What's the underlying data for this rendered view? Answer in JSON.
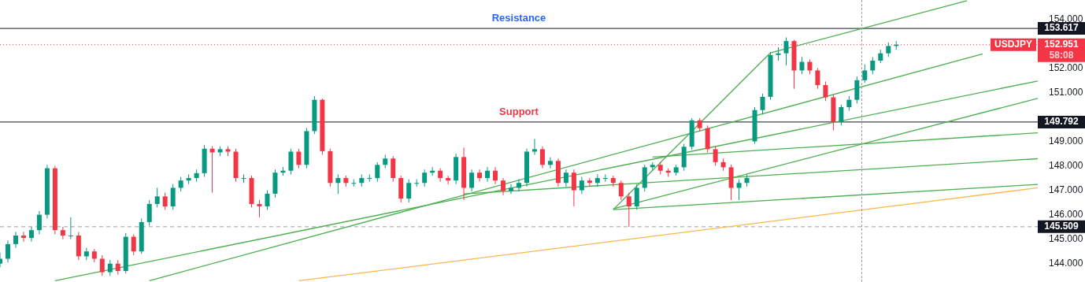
{
  "chart_data": {
    "type": "candlestick",
    "categories": [
      null,
      null,
      null,
      null,
      null,
      null,
      null,
      null,
      null,
      null,
      null,
      null,
      null,
      null,
      null,
      null,
      null,
      null,
      null,
      null,
      null,
      null,
      null,
      null,
      null,
      null,
      null,
      null,
      null,
      null,
      null,
      null,
      null,
      null,
      null,
      null,
      null,
      null,
      null,
      null,
      null,
      null,
      null,
      null,
      null,
      null,
      null,
      null,
      null,
      null,
      null,
      null,
      null,
      null,
      null,
      null,
      null,
      null,
      null,
      null,
      null,
      null,
      null,
      null,
      null,
      null,
      null,
      null,
      null,
      null,
      null,
      null,
      null,
      null,
      null,
      null,
      null,
      null,
      null,
      null,
      null,
      null,
      null,
      null,
      null,
      null,
      null,
      null,
      null,
      null,
      null,
      null,
      null,
      null,
      null,
      null,
      null,
      null,
      null,
      null,
      null,
      null,
      null,
      null,
      null,
      null,
      null,
      null,
      null,
      null,
      null,
      null,
      null,
      null,
      null,
      null,
      null,
      null,
      null,
      null,
      null,
      null,
      null,
      null,
      null,
      null,
      null,
      null,
      null,
      null,
      null,
      null,
      null
    ],
    "ohlc": [
      [
        144.0,
        144.45,
        143.85,
        144.2
      ],
      [
        144.2,
        144.95,
        144.05,
        144.8
      ],
      [
        144.8,
        145.3,
        144.65,
        145.15
      ],
      [
        145.15,
        145.3,
        144.9,
        145.05
      ],
      [
        145.05,
        145.5,
        144.9,
        145.37
      ],
      [
        145.37,
        146.15,
        145.2,
        146.0
      ],
      [
        146.0,
        148.04,
        145.85,
        147.9
      ],
      [
        147.9,
        148.0,
        145.2,
        145.37
      ],
      [
        145.37,
        145.5,
        145.0,
        145.15
      ],
      [
        145.15,
        145.9,
        145.0,
        145.15
      ],
      [
        145.15,
        145.3,
        144.15,
        144.3
      ],
      [
        144.3,
        144.65,
        144.15,
        144.5
      ],
      [
        144.5,
        144.6,
        144.05,
        144.2
      ],
      [
        144.2,
        144.35,
        143.5,
        143.65
      ],
      [
        143.65,
        144.15,
        143.5,
        144.0
      ],
      [
        144.0,
        144.15,
        143.55,
        143.7
      ],
      [
        143.7,
        145.25,
        143.6,
        145.1
      ],
      [
        145.1,
        145.2,
        144.35,
        144.5
      ],
      [
        144.5,
        145.85,
        144.4,
        145.7
      ],
      [
        145.7,
        146.6,
        145.55,
        146.44
      ],
      [
        146.44,
        147.1,
        146.3,
        146.75
      ],
      [
        146.75,
        146.9,
        146.2,
        146.34
      ],
      [
        146.34,
        147.25,
        146.2,
        147.1
      ],
      [
        147.1,
        147.55,
        146.95,
        147.4
      ],
      [
        147.4,
        147.65,
        147.25,
        147.5
      ],
      [
        147.5,
        147.85,
        147.35,
        147.7
      ],
      [
        147.7,
        148.85,
        147.55,
        148.7
      ],
      [
        148.7,
        148.8,
        146.9,
        148.55
      ],
      [
        148.55,
        148.8,
        148.4,
        148.68
      ],
      [
        148.68,
        148.8,
        148.4,
        148.58
      ],
      [
        148.58,
        148.7,
        147.35,
        147.5
      ],
      [
        147.5,
        147.65,
        147.3,
        147.5
      ],
      [
        147.5,
        147.6,
        146.3,
        146.44
      ],
      [
        146.44,
        146.6,
        145.9,
        146.34
      ],
      [
        146.34,
        147.0,
        146.2,
        146.86
      ],
      [
        146.86,
        147.85,
        146.7,
        147.72
      ],
      [
        147.72,
        147.95,
        147.6,
        147.8
      ],
      [
        147.8,
        148.7,
        147.65,
        148.58
      ],
      [
        148.58,
        148.7,
        147.9,
        148.04
      ],
      [
        148.04,
        149.55,
        147.9,
        149.42
      ],
      [
        149.42,
        150.85,
        149.3,
        150.7
      ],
      [
        150.7,
        150.75,
        148.45,
        148.6
      ],
      [
        148.6,
        148.7,
        147.15,
        147.3
      ],
      [
        147.3,
        147.65,
        146.85,
        147.5
      ],
      [
        147.5,
        147.6,
        147.15,
        147.3
      ],
      [
        147.3,
        147.45,
        147.15,
        147.3
      ],
      [
        147.3,
        147.65,
        147.15,
        147.5
      ],
      [
        147.5,
        147.65,
        147.35,
        147.5
      ],
      [
        147.5,
        148.15,
        147.35,
        148.04
      ],
      [
        148.04,
        148.45,
        147.9,
        148.3
      ],
      [
        148.3,
        148.4,
        147.35,
        147.5
      ],
      [
        147.5,
        147.6,
        146.5,
        146.66
      ],
      [
        146.66,
        147.45,
        146.5,
        147.3
      ],
      [
        147.3,
        147.45,
        147.15,
        147.3
      ],
      [
        147.3,
        147.85,
        147.15,
        147.72
      ],
      [
        147.72,
        147.95,
        147.6,
        147.8
      ],
      [
        147.8,
        147.9,
        147.35,
        147.5
      ],
      [
        147.5,
        147.6,
        147.25,
        147.4
      ],
      [
        147.4,
        148.5,
        147.25,
        148.36
      ],
      [
        148.36,
        148.75,
        146.6,
        147.1
      ],
      [
        147.1,
        147.85,
        146.95,
        147.72
      ],
      [
        147.72,
        147.85,
        147.35,
        147.5
      ],
      [
        147.5,
        147.95,
        147.35,
        147.8
      ],
      [
        147.8,
        147.95,
        147.25,
        147.4
      ],
      [
        147.4,
        147.5,
        146.8,
        146.97
      ],
      [
        146.97,
        147.25,
        146.85,
        147.1
      ],
      [
        147.1,
        147.45,
        146.95,
        147.3
      ],
      [
        147.3,
        148.7,
        147.15,
        148.58
      ],
      [
        148.58,
        149.1,
        148.45,
        148.68
      ],
      [
        148.68,
        148.8,
        147.9,
        148.04
      ],
      [
        148.04,
        148.35,
        147.9,
        148.2
      ],
      [
        148.2,
        148.3,
        147.15,
        147.3
      ],
      [
        147.3,
        147.85,
        147.15,
        147.72
      ],
      [
        147.72,
        147.85,
        146.35,
        147.0
      ],
      [
        147.0,
        147.55,
        146.85,
        147.4
      ],
      [
        147.4,
        147.5,
        147.15,
        147.3
      ],
      [
        147.3,
        147.65,
        147.15,
        147.5
      ],
      [
        147.5,
        147.65,
        147.35,
        147.5
      ],
      [
        147.5,
        147.6,
        147.15,
        147.3
      ],
      [
        147.3,
        147.4,
        146.6,
        146.75
      ],
      [
        146.75,
        146.9,
        145.5,
        146.34
      ],
      [
        146.34,
        147.25,
        146.2,
        147.1
      ],
      [
        147.1,
        148.05,
        146.95,
        147.94
      ],
      [
        147.94,
        148.15,
        147.8,
        148.04
      ],
      [
        148.04,
        148.15,
        147.65,
        147.8
      ],
      [
        147.8,
        147.9,
        147.55,
        147.72
      ],
      [
        147.72,
        148.05,
        147.6,
        147.94
      ],
      [
        147.94,
        148.9,
        147.8,
        148.78
      ],
      [
        148.78,
        149.95,
        148.65,
        149.86
      ],
      [
        149.86,
        149.95,
        149.4,
        149.54
      ],
      [
        149.54,
        149.65,
        148.55,
        148.68
      ],
      [
        148.68,
        148.8,
        148.0,
        148.15
      ],
      [
        148.15,
        148.3,
        147.8,
        147.94
      ],
      [
        147.94,
        148.05,
        146.6,
        147.1
      ],
      [
        147.1,
        147.45,
        146.6,
        147.3
      ],
      [
        147.3,
        147.65,
        147.15,
        147.5
      ],
      [
        149.0,
        150.4,
        148.9,
        150.28
      ],
      [
        150.28,
        150.95,
        150.1,
        150.82
      ],
      [
        150.82,
        152.65,
        150.7,
        152.53
      ],
      [
        152.53,
        152.85,
        152.3,
        152.6
      ],
      [
        152.6,
        153.25,
        152.1,
        153.1
      ],
      [
        153.1,
        153.15,
        151.15,
        151.9
      ],
      [
        151.9,
        152.45,
        151.75,
        152.25
      ],
      [
        152.25,
        152.35,
        151.75,
        151.9
      ],
      [
        151.9,
        152.0,
        151.15,
        151.3
      ],
      [
        151.3,
        151.45,
        150.65,
        150.8
      ],
      [
        150.8,
        150.9,
        149.45,
        149.8
      ],
      [
        149.8,
        150.5,
        149.65,
        150.4
      ],
      [
        150.4,
        150.85,
        150.25,
        150.7
      ],
      [
        150.7,
        151.65,
        150.55,
        151.5
      ],
      [
        151.5,
        152.15,
        151.4,
        151.9
      ],
      [
        151.9,
        152.45,
        151.75,
        152.3
      ],
      [
        152.3,
        152.75,
        152.2,
        152.6
      ],
      [
        152.6,
        153.05,
        152.45,
        152.9
      ],
      [
        152.9,
        153.1,
        152.75,
        152.951
      ],
      null,
      null,
      null,
      null,
      null,
      null,
      null,
      null,
      null,
      null,
      null,
      null,
      null,
      null,
      null,
      null,
      null,
      null
    ],
    "series": [
      {
        "type": "line",
        "color": "#4caf50",
        "values": [
          null,
          null,
          null,
          null,
          null,
          null,
          null,
          null,
          null,
          null,
          null,
          null,
          null,
          null,
          null,
          null,
          null,
          null,
          null,
          null,
          null,
          null,
          null,
          null,
          null,
          null,
          null,
          null,
          null,
          null,
          null,
          null,
          null,
          null,
          null,
          null,
          null,
          null,
          null,
          null,
          null,
          null,
          null,
          null,
          null,
          null,
          null,
          null,
          null,
          null,
          null,
          null,
          null,
          null,
          null,
          null,
          null,
          null,
          null,
          null,
          null,
          null,
          null,
          null,
          null,
          null,
          null,
          null,
          null,
          null,
          null,
          null,
          null,
          null,
          null,
          null,
          null,
          null,
          null,
          null,
          null,
          null,
          null,
          null,
          null,
          null,
          null,
          null,
          null,
          null,
          null,
          null,
          null,
          null,
          null,
          null,
          null,
          null,
          152.62,
          null,
          null,
          null,
          null,
          null,
          null,
          null,
          null,
          null,
          null,
          null,
          null,
          null,
          null,
          null,
          null,
          null,
          null,
          null,
          null,
          null,
          null,
          null,
          null,
          154.75,
          null,
          null,
          null,
          null,
          null,
          null,
          null,
          null,
          null
        ]
      },
      {
        "type": "line",
        "color": "#4caf50",
        "values": [
          null,
          null,
          null,
          null,
          null,
          null,
          null,
          null,
          null,
          null,
          null,
          null,
          null,
          null,
          null,
          null,
          null,
          null,
          null,
          143.3,
          null,
          null,
          null,
          null,
          null,
          null,
          null,
          null,
          null,
          null,
          null,
          null,
          null,
          null,
          null,
          null,
          null,
          null,
          null,
          null,
          null,
          null,
          null,
          null,
          null,
          null,
          null,
          null,
          null,
          null,
          null,
          null,
          null,
          null,
          null,
          null,
          null,
          null,
          null,
          null,
          null,
          null,
          null,
          null,
          null,
          null,
          null,
          null,
          null,
          null,
          null,
          null,
          null,
          null,
          null,
          null,
          null,
          null,
          null,
          null,
          null,
          null,
          null,
          null,
          null,
          null,
          null,
          null,
          null,
          null,
          null,
          null,
          null,
          null,
          null,
          null,
          null,
          null,
          null,
          null,
          null,
          null,
          null,
          null,
          null,
          null,
          null,
          null,
          null,
          null,
          null,
          null,
          null,
          null,
          null,
          null,
          null,
          null,
          null,
          null,
          null,
          null,
          null,
          null,
          null,
          152.58,
          null,
          null,
          null,
          null,
          null,
          null,
          null
        ]
      },
      {
        "type": "line",
        "color": "#4caf50",
        "values": [
          null,
          null,
          null,
          null,
          null,
          null,
          null,
          143.3,
          null,
          null,
          null,
          null,
          null,
          null,
          null,
          null,
          null,
          null,
          null,
          null,
          null,
          null,
          null,
          null,
          null,
          null,
          null,
          null,
          null,
          null,
          null,
          null,
          null,
          null,
          null,
          null,
          null,
          null,
          null,
          null,
          null,
          null,
          null,
          null,
          null,
          null,
          null,
          null,
          null,
          null,
          null,
          null,
          null,
          null,
          null,
          null,
          null,
          null,
          null,
          null,
          null,
          null,
          null,
          null,
          null,
          null,
          null,
          null,
          null,
          null,
          null,
          null,
          null,
          null,
          null,
          null,
          null,
          null,
          null,
          null,
          null,
          null,
          null,
          null,
          null,
          null,
          null,
          null,
          null,
          null,
          null,
          null,
          null,
          null,
          null,
          null,
          null,
          null,
          null,
          null,
          null,
          null,
          null,
          null,
          null,
          null,
          null,
          null,
          null,
          null,
          null,
          null,
          null,
          null,
          null,
          null,
          null,
          null,
          null,
          null,
          null,
          null,
          null,
          null,
          null,
          null,
          null,
          null,
          null,
          null,
          null,
          null,
          151.47
        ]
      },
      {
        "type": "line",
        "color": "#4caf50",
        "values": [
          null,
          null,
          null,
          null,
          null,
          null,
          null,
          null,
          null,
          null,
          null,
          null,
          null,
          null,
          null,
          null,
          null,
          null,
          null,
          null,
          null,
          null,
          null,
          null,
          null,
          null,
          null,
          null,
          null,
          null,
          null,
          null,
          null,
          null,
          null,
          null,
          null,
          null,
          null,
          null,
          null,
          null,
          null,
          null,
          null,
          null,
          null,
          null,
          null,
          null,
          null,
          null,
          null,
          null,
          null,
          null,
          null,
          null,
          null,
          null,
          null,
          null,
          null,
          null,
          null,
          null,
          null,
          null,
          null,
          null,
          null,
          null,
          null,
          null,
          null,
          null,
          null,
          null,
          146.24,
          null,
          null,
          null,
          null,
          null,
          null,
          null,
          null,
          null,
          null,
          null,
          null,
          null,
          null,
          null,
          null,
          null,
          null,
          null,
          null,
          null,
          null,
          null,
          null,
          null,
          null,
          null,
          null,
          null,
          null,
          null,
          null,
          null,
          null,
          null,
          null,
          null,
          null,
          null,
          null,
          null,
          null,
          null,
          null,
          null,
          null,
          null,
          null,
          null,
          null,
          null,
          null,
          null,
          150.76
        ]
      },
      {
        "type": "line",
        "color": "#4caf50",
        "values": [
          null,
          null,
          null,
          null,
          null,
          null,
          null,
          null,
          null,
          null,
          null,
          null,
          null,
          null,
          null,
          null,
          null,
          null,
          null,
          null,
          null,
          null,
          null,
          null,
          null,
          null,
          null,
          null,
          null,
          null,
          null,
          null,
          null,
          null,
          null,
          null,
          null,
          null,
          null,
          null,
          null,
          null,
          null,
          null,
          null,
          null,
          null,
          null,
          null,
          null,
          null,
          null,
          null,
          null,
          null,
          null,
          null,
          null,
          null,
          null,
          null,
          null,
          null,
          null,
          null,
          null,
          null,
          null,
          null,
          null,
          null,
          null,
          null,
          null,
          null,
          null,
          null,
          null,
          null,
          null,
          null,
          null,
          null,
          148.36,
          null,
          null,
          null,
          null,
          null,
          null,
          null,
          null,
          null,
          null,
          null,
          null,
          null,
          null,
          null,
          null,
          null,
          null,
          null,
          null,
          null,
          null,
          null,
          null,
          null,
          null,
          null,
          null,
          null,
          null,
          null,
          null,
          null,
          null,
          null,
          null,
          null,
          null,
          null,
          null,
          null,
          null,
          null,
          null,
          null,
          null,
          null,
          null,
          149.35
        ]
      },
      {
        "type": "line",
        "color": "#4caf50",
        "values": [
          null,
          null,
          null,
          null,
          null,
          null,
          null,
          null,
          null,
          null,
          null,
          null,
          null,
          null,
          null,
          null,
          null,
          null,
          null,
          null,
          null,
          null,
          null,
          null,
          null,
          null,
          null,
          null,
          null,
          null,
          null,
          null,
          null,
          null,
          null,
          null,
          null,
          null,
          null,
          null,
          null,
          null,
          null,
          null,
          null,
          null,
          null,
          null,
          null,
          null,
          null,
          null,
          null,
          null,
          null,
          null,
          null,
          null,
          null,
          146.85,
          null,
          null,
          null,
          null,
          null,
          null,
          null,
          null,
          null,
          null,
          null,
          null,
          null,
          null,
          null,
          null,
          null,
          null,
          null,
          null,
          null,
          null,
          null,
          null,
          null,
          null,
          null,
          null,
          null,
          null,
          null,
          null,
          null,
          null,
          null,
          null,
          null,
          null,
          null,
          null,
          null,
          null,
          null,
          null,
          null,
          null,
          null,
          null,
          null,
          null,
          null,
          null,
          null,
          null,
          null,
          null,
          null,
          null,
          null,
          null,
          null,
          null,
          null,
          null,
          null,
          null,
          null,
          null,
          null,
          null,
          null,
          null,
          148.29
        ]
      },
      {
        "type": "line",
        "color": "#4caf50",
        "values": [
          null,
          null,
          null,
          null,
          null,
          null,
          null,
          null,
          null,
          null,
          null,
          null,
          null,
          null,
          null,
          null,
          null,
          null,
          null,
          null,
          null,
          null,
          null,
          null,
          null,
          null,
          null,
          null,
          null,
          null,
          null,
          null,
          null,
          null,
          null,
          null,
          null,
          null,
          null,
          null,
          null,
          null,
          null,
          null,
          null,
          null,
          null,
          null,
          null,
          null,
          null,
          null,
          null,
          null,
          null,
          null,
          null,
          null,
          null,
          null,
          null,
          null,
          null,
          null,
          null,
          null,
          null,
          null,
          null,
          null,
          null,
          null,
          null,
          null,
          null,
          null,
          null,
          null,
          146.21,
          null,
          null,
          null,
          null,
          null,
          null,
          null,
          null,
          null,
          null,
          null,
          null,
          null,
          null,
          null,
          null,
          null,
          null,
          null,
          null,
          null,
          null,
          null,
          null,
          null,
          null,
          null,
          null,
          null,
          null,
          null,
          null,
          null,
          null,
          null,
          null,
          null,
          null,
          null,
          null,
          null,
          null,
          null,
          null,
          null,
          null,
          null,
          null,
          null,
          null,
          null,
          null,
          null,
          147.24
        ]
      },
      {
        "type": "line",
        "color": "#4caf50",
        "values": [
          null,
          null,
          null,
          null,
          null,
          null,
          null,
          null,
          null,
          null,
          null,
          null,
          null,
          null,
          null,
          null,
          null,
          null,
          null,
          null,
          null,
          null,
          null,
          null,
          null,
          null,
          null,
          null,
          null,
          null,
          null,
          null,
          null,
          null,
          null,
          null,
          null,
          null,
          null,
          null,
          null,
          null,
          null,
          null,
          null,
          null,
          null,
          null,
          null,
          null,
          null,
          null,
          null,
          null,
          null,
          null,
          null,
          null,
          null,
          null,
          null,
          null,
          null,
          null,
          null,
          null,
          null,
          null,
          null,
          null,
          null,
          null,
          null,
          null,
          null,
          null,
          null,
          null,
          146.21,
          null,
          null,
          null,
          null,
          null,
          null,
          null,
          null,
          null,
          null,
          null,
          null,
          null,
          null,
          null,
          null,
          null,
          null,
          null,
          152.62,
          null,
          null,
          null,
          null,
          null,
          null,
          null,
          null,
          null,
          null,
          null,
          null,
          null,
          null,
          null,
          null,
          null,
          null,
          null,
          null,
          null,
          null,
          null,
          null,
          null,
          null,
          null,
          null,
          null,
          null,
          null,
          null,
          null,
          null
        ]
      },
      {
        "type": "line",
        "color": "#ffb74d",
        "values": [
          null,
          null,
          null,
          null,
          null,
          null,
          null,
          null,
          null,
          null,
          null,
          null,
          null,
          null,
          null,
          null,
          null,
          null,
          null,
          null,
          null,
          null,
          null,
          null,
          null,
          null,
          null,
          null,
          null,
          null,
          null,
          null,
          null,
          null,
          null,
          null,
          null,
          null,
          143.3,
          null,
          null,
          null,
          null,
          null,
          null,
          null,
          null,
          null,
          null,
          null,
          null,
          null,
          null,
          null,
          null,
          null,
          null,
          null,
          null,
          null,
          null,
          null,
          null,
          null,
          null,
          null,
          null,
          null,
          null,
          null,
          null,
          null,
          null,
          null,
          null,
          null,
          null,
          null,
          null,
          null,
          null,
          null,
          null,
          null,
          null,
          null,
          null,
          null,
          null,
          null,
          null,
          null,
          null,
          null,
          null,
          null,
          null,
          null,
          null,
          null,
          null,
          null,
          null,
          null,
          null,
          null,
          null,
          null,
          null,
          null,
          null,
          null,
          null,
          null,
          null,
          null,
          null,
          null,
          null,
          null,
          null,
          null,
          null,
          null,
          null,
          null,
          null,
          null,
          null,
          null,
          null,
          null,
          147.1
        ]
      }
    ],
    "ylim": [
      143.25,
      154.78
    ],
    "yticks": [
      {
        "value": 144,
        "label": "144.000"
      },
      {
        "value": 145,
        "label": "145.000"
      },
      {
        "value": 146,
        "label": "146.000"
      },
      {
        "value": 147,
        "label": "147.000"
      },
      {
        "value": 148,
        "label": "148.000"
      },
      {
        "value": 149,
        "label": "149.000"
      },
      {
        "value": 151,
        "label": "151.000"
      },
      {
        "value": 152,
        "label": "152.000"
      },
      {
        "value": 154,
        "label": "154.000"
      }
    ],
    "ref_lines": [
      {
        "axis": "y",
        "value": 153.617,
        "label": "153.617",
        "color": "#131722",
        "line_style": "solid"
      },
      {
        "axis": "y",
        "value": 149.792,
        "label": "149.792",
        "color": "#131722",
        "line_style": "solid"
      },
      {
        "axis": "y",
        "value": 145.509,
        "label": "145.509",
        "color": "#9e9e9e",
        "line_style": "dashed"
      },
      {
        "axis": "y",
        "value": 152.951,
        "label": "152.951",
        "color": "#f23645",
        "line_style": "dotted"
      }
    ],
    "annotations": [
      {
        "text": "Resistance",
        "y": 153.617
      },
      {
        "text": "Support",
        "y": 149.792
      },
      {
        "text": "USDJPY",
        "y": 152.951
      },
      "58:08"
    ],
    "tick_labels": "y",
    "grid": false,
    "legend": false,
    "marker": "none"
  }
}
